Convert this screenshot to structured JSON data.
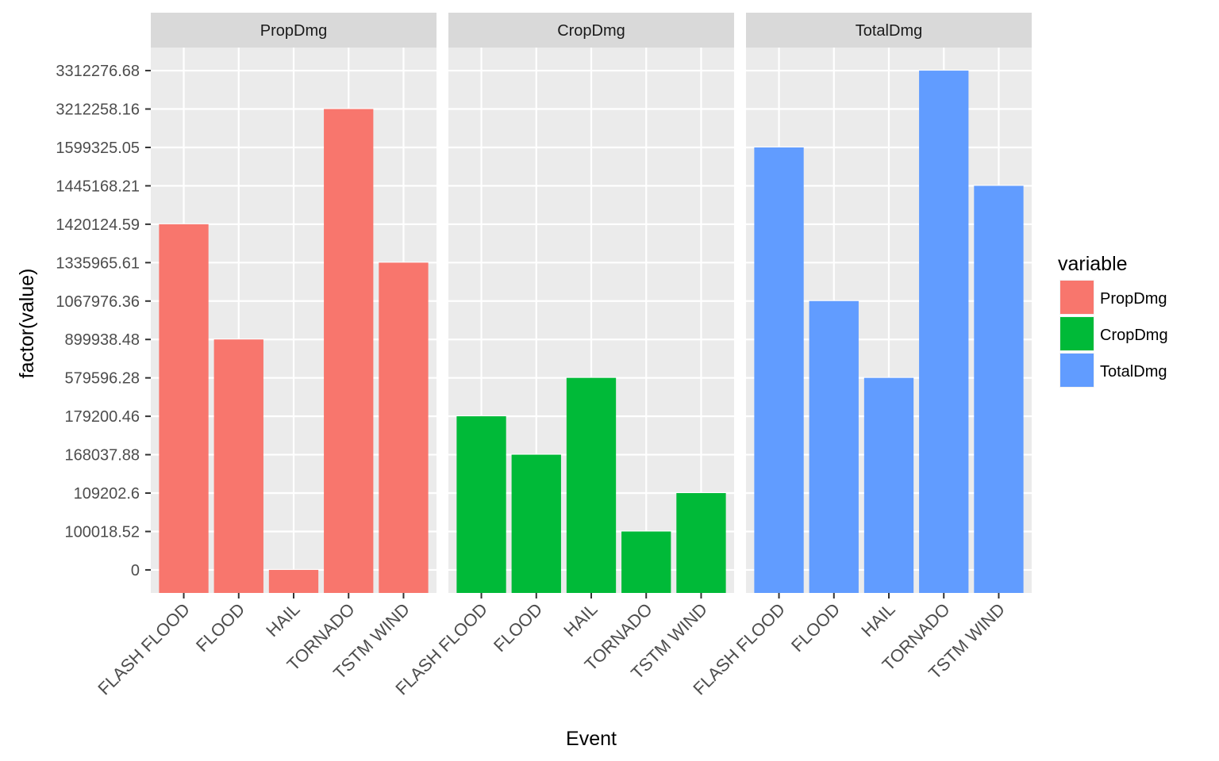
{
  "chart_data": {
    "type": "bar",
    "xlabel": "Event",
    "ylabel": "factor(value)",
    "y_axis_type": "categorical (factor levels)",
    "y_levels": [
      "0",
      "100018.52",
      "109202.6",
      "168037.88",
      "179200.46",
      "579596.28",
      "899938.48",
      "1067976.36",
      "1335965.61",
      "1420124.59",
      "1445168.21",
      "1599325.05",
      "3212258.16",
      "3312276.68"
    ],
    "categories": [
      "FLASH FLOOD",
      "FLOOD",
      "HAIL",
      "TORNADO",
      "TSTM WIND"
    ],
    "facets": [
      "PropDmg",
      "CropDmg",
      "TotalDmg"
    ],
    "series": [
      {
        "name": "PropDmg",
        "color": "#F8766D",
        "values": [
          "1420124.59",
          "899938.48",
          "0",
          "3212258.16",
          "1335965.61"
        ]
      },
      {
        "name": "CropDmg",
        "color": "#00BA38",
        "values": [
          "179200.46",
          "168037.88",
          "579596.28",
          "100018.52",
          "109202.6"
        ]
      },
      {
        "name": "TotalDmg",
        "color": "#619CFF",
        "values": [
          "1599325.05",
          "1067976.36",
          "579596.28",
          "3312276.68",
          "1445168.21"
        ]
      }
    ],
    "legend": {
      "title": "variable",
      "placement": "right"
    },
    "grid": true,
    "panel_background": "#EBEBEB",
    "strip_background": "#D9D9D9"
  }
}
